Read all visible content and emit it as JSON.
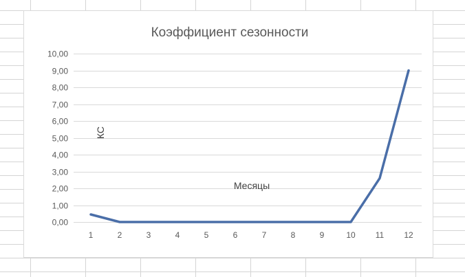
{
  "spreadsheet": {
    "gridline_color": "#d4d4d4"
  },
  "chart_data": {
    "type": "line",
    "title": "Коэффициент сезонности",
    "xlabel": "Месяцы",
    "ylabel": "КС",
    "categories": [
      "1",
      "2",
      "3",
      "4",
      "5",
      "6",
      "7",
      "8",
      "9",
      "10",
      "11",
      "12"
    ],
    "series": [
      {
        "values": [
          0.45,
          0.0,
          0.0,
          0.0,
          0.0,
          0.0,
          0.0,
          0.0,
          0.0,
          0.0,
          2.6,
          9.0
        ],
        "color": "#4a6ea8"
      }
    ],
    "ylim": [
      0,
      10
    ],
    "yticks": [
      "0,00",
      "1,00",
      "2,00",
      "3,00",
      "4,00",
      "5,00",
      "6,00",
      "7,00",
      "8,00",
      "9,00",
      "10,00"
    ],
    "grid": true,
    "gridline_color": "#d9d9d9",
    "legend": "none"
  }
}
